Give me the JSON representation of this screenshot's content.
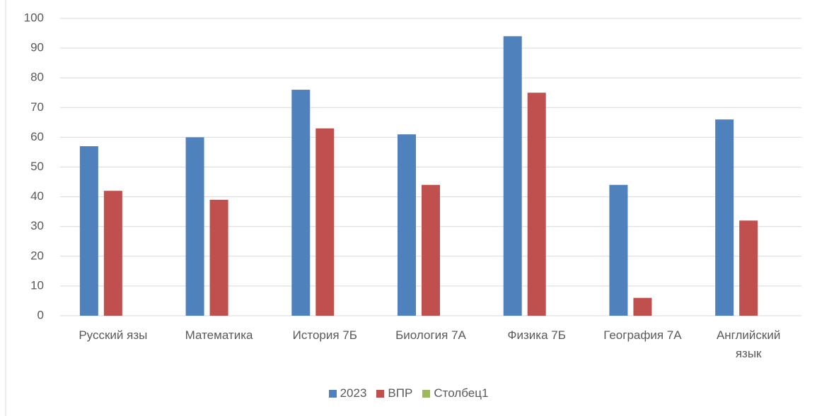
{
  "chart_data": {
    "type": "bar",
    "categories": [
      "Русский язы",
      "Математика",
      "История 7Б",
      "Биология 7А",
      "Физика 7Б",
      "География 7А",
      "Английский язык"
    ],
    "series": [
      {
        "name": "2023",
        "color": "#4f81bd",
        "values": [
          57,
          60,
          76,
          61,
          94,
          44,
          66
        ]
      },
      {
        "name": "ВПР",
        "color": "#c0504d",
        "values": [
          42,
          39,
          63,
          44,
          75,
          6,
          32
        ]
      },
      {
        "name": "Столбец1",
        "color": "#9bbb59",
        "values": [
          null,
          null,
          null,
          null,
          null,
          null,
          null
        ]
      }
    ],
    "ylim": [
      0,
      100
    ],
    "yticks": [
      0,
      10,
      20,
      30,
      40,
      50,
      60,
      70,
      80,
      90,
      100
    ],
    "grid": true,
    "legend": "bottom"
  }
}
